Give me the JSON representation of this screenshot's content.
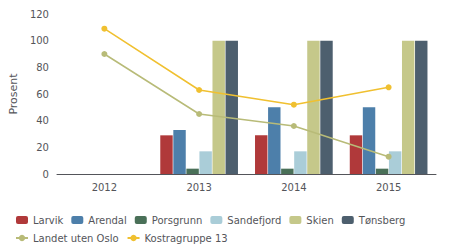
{
  "chart_data": {
    "type": "bar",
    "ylabel": "Prosent",
    "categories": [
      "2012",
      "2013",
      "2014",
      "2015"
    ],
    "series": [
      {
        "name": "Larvik",
        "type": "bar",
        "color": "#b0393a",
        "values": [
          0,
          29,
          29,
          29
        ]
      },
      {
        "name": "Arendal",
        "type": "bar",
        "color": "#4d7faa",
        "values": [
          0,
          33,
          50,
          50
        ]
      },
      {
        "name": "Porsgrunn",
        "type": "bar",
        "color": "#4a7058",
        "values": [
          0,
          4,
          4,
          4
        ]
      },
      {
        "name": "Sandefjord",
        "type": "bar",
        "color": "#aacdd8",
        "values": [
          0,
          17,
          17,
          17
        ]
      },
      {
        "name": "Skien",
        "type": "bar",
        "color": "#c5c88a",
        "values": [
          0,
          100,
          100,
          100
        ]
      },
      {
        "name": "Tønsberg",
        "type": "bar",
        "color": "#4d5f6e",
        "values": [
          0,
          100,
          100,
          100
        ]
      },
      {
        "name": "Landet uten Oslo",
        "type": "line",
        "marker": "circle",
        "color": "#b8bb78",
        "values": [
          90,
          45,
          36,
          13
        ]
      },
      {
        "name": "Kostragruppe 13",
        "type": "line",
        "marker": "circle",
        "color": "#f0c030",
        "values": [
          109,
          63,
          52,
          65
        ]
      }
    ],
    "ylim": [
      0,
      120
    ],
    "yticks": [
      0,
      20,
      40,
      60,
      80,
      100,
      120
    ],
    "grid": false,
    "legend": "lower left"
  }
}
